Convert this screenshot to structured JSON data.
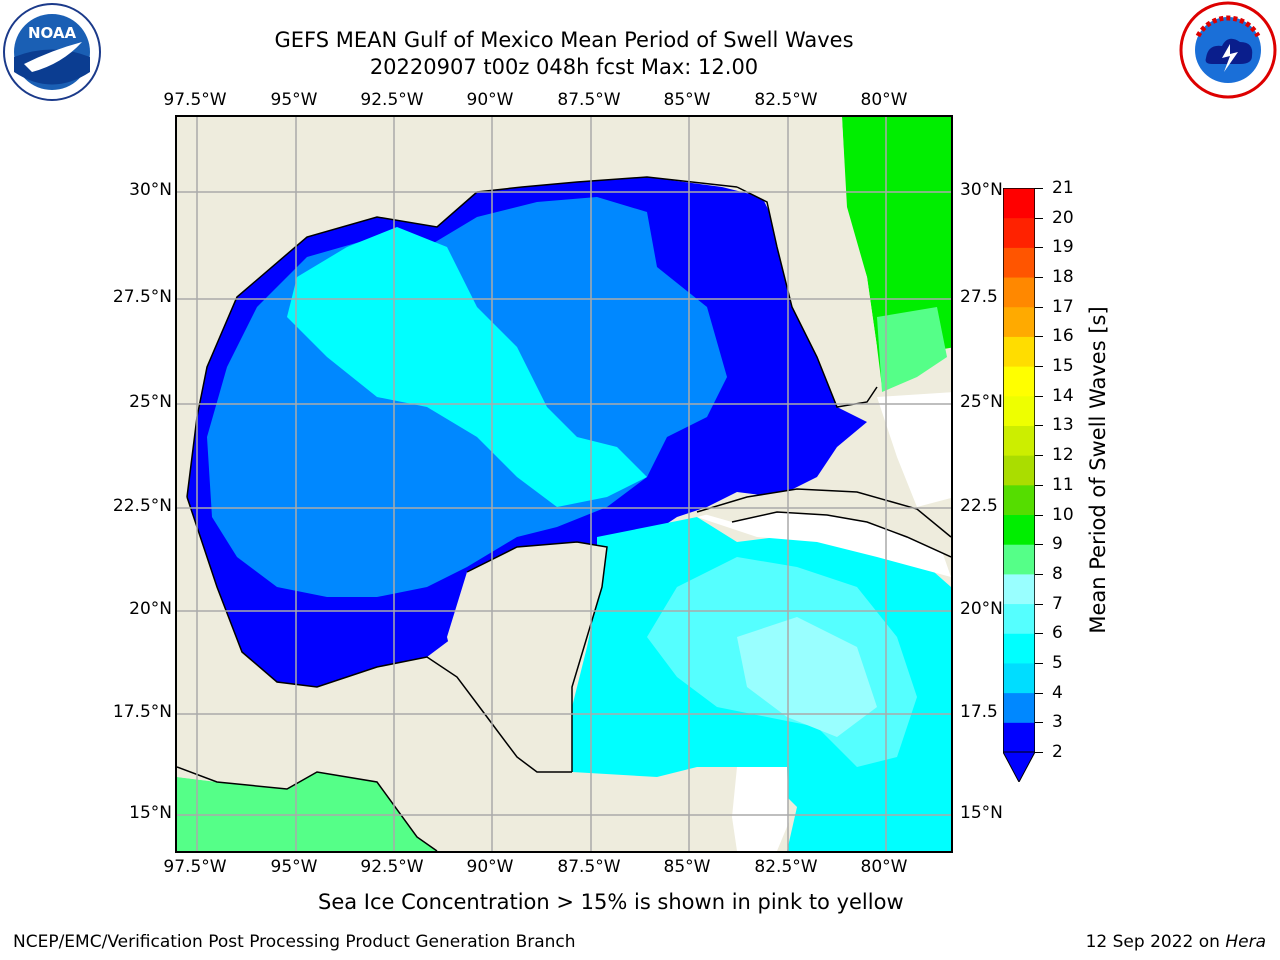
{
  "title": {
    "line1": "GEFS MEAN Gulf of Mexico Mean Period of Swell Waves",
    "line2": "20220907 t00z 048h fcst   Max: 12.00"
  },
  "map": {
    "lon_ticks": [
      "97.5°W",
      "95°W",
      "92.5°W",
      "90°W",
      "87.5°W",
      "85°W",
      "82.5°W",
      "80°W"
    ],
    "lat_ticks": [
      "30°N",
      "27.5°N",
      "25°N",
      "22.5°N",
      "20°N",
      "17.5°N",
      "15°N"
    ],
    "lat_ticks_right": [
      "30°N",
      "27.5",
      "25°N",
      "22.5",
      "20°N",
      "17.5",
      "15°N"
    ],
    "land_color": "#eeecdd",
    "missing_color": "#ffffff"
  },
  "colorbar": {
    "label": "Mean Period of Swell Waves [s]",
    "ticks": [
      "21",
      "20",
      "19",
      "18",
      "17",
      "16",
      "15",
      "14",
      "13",
      "12",
      "11",
      "10",
      "9",
      "8",
      "7",
      "6",
      "5",
      "4",
      "3",
      "2"
    ],
    "colors_bottom_to_top": [
      "#0000ff",
      "#0088ff",
      "#00ddff",
      "#00ffff",
      "#55ffff",
      "#99ffff",
      "#55ff88",
      "#00ee00",
      "#55dd00",
      "#aadd00",
      "#ccee00",
      "#eeff00",
      "#ffff00",
      "#ffdd00",
      "#ffaa00",
      "#ff8800",
      "#ff5500",
      "#ff2200",
      "#ff0000"
    ]
  },
  "note": "Sea Ice Concentration > 15% is shown in pink to yellow",
  "footer": {
    "left": "NCEP/EMC/Verification Post Processing Product Generation Branch",
    "right_prefix": "12 Sep 2022 on ",
    "right_host": "Hera"
  },
  "logos": {
    "left_text": "NOAA",
    "right_text": "NATIONAL WEATHER SERVICE"
  }
}
